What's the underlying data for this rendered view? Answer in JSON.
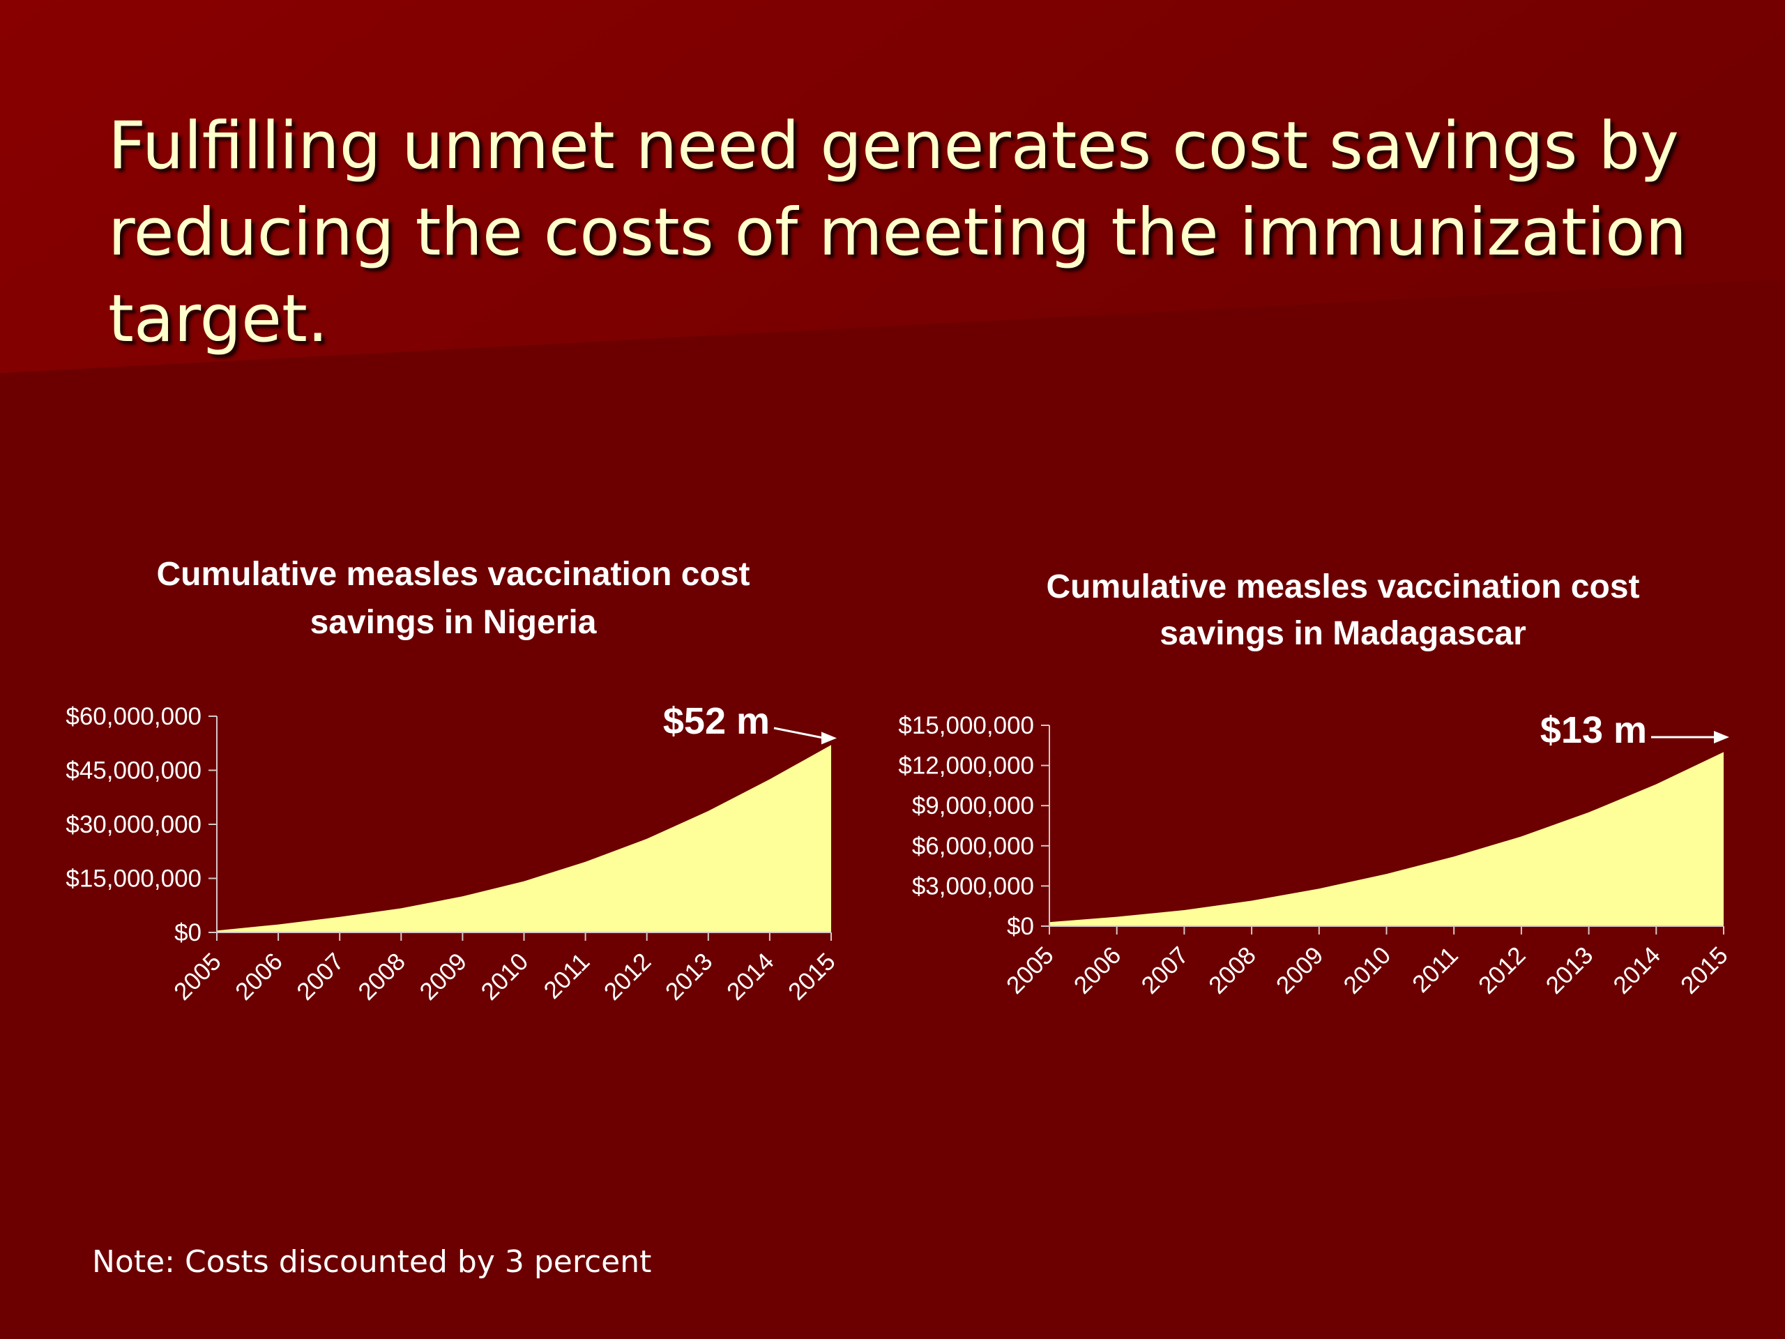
{
  "slide": {
    "title": "Fulfilling unmet need generates cost savings by reducing the costs of meeting the immunization target.",
    "note": "Note: Costs discounted by 3 percent"
  },
  "colors": {
    "background": "#6c0000",
    "header_band": "#840000",
    "title_text": "#ffffcc",
    "area_fill": "#ffff99",
    "axis": "#d8c8c8",
    "text": "#ffffff"
  },
  "chart_data": [
    {
      "type": "area",
      "title": [
        "Cumulative measles vaccination cost",
        "savings in Nigeria"
      ],
      "x": [
        "2005",
        "2006",
        "2007",
        "2008",
        "2009",
        "2010",
        "2011",
        "2012",
        "2013",
        "2014",
        "2015"
      ],
      "series": [
        {
          "values": [
            500000,
            2200000,
            4300000,
            6700000,
            10000000,
            14200000,
            19600000,
            26000000,
            33700000,
            42500000,
            52000000
          ]
        }
      ],
      "ylim": [
        0,
        60000000
      ],
      "yticks": [
        0,
        15000000,
        30000000,
        45000000,
        60000000
      ],
      "ytick_labels": [
        "$0",
        "$15,000,000",
        "$30,000,000",
        "$45,000,000",
        "$60,000,000"
      ],
      "xlabel": "",
      "ylabel": "",
      "annotation": {
        "text": "$52 m",
        "x": "2015",
        "y": 52000000
      }
    },
    {
      "type": "area",
      "title": [
        "Cumulative measles vaccination cost",
        "savings in Madagascar"
      ],
      "x": [
        "2005",
        "2006",
        "2007",
        "2008",
        "2009",
        "2010",
        "2011",
        "2012",
        "2013",
        "2014",
        "2015"
      ],
      "series": [
        {
          "values": [
            300000,
            700000,
            1200000,
            1900000,
            2800000,
            3900000,
            5200000,
            6700000,
            8500000,
            10600000,
            13000000
          ]
        }
      ],
      "ylim": [
        0,
        15000000
      ],
      "yticks": [
        0,
        3000000,
        6000000,
        9000000,
        12000000,
        15000000
      ],
      "ytick_labels": [
        "$0",
        "$3,000,000",
        "$6,000,000",
        "$9,000,000",
        "$12,000,000",
        "$15,000,000"
      ],
      "xlabel": "",
      "ylabel": "",
      "annotation": {
        "text": "$13 m",
        "x": "2015",
        "y": 13000000
      }
    }
  ]
}
